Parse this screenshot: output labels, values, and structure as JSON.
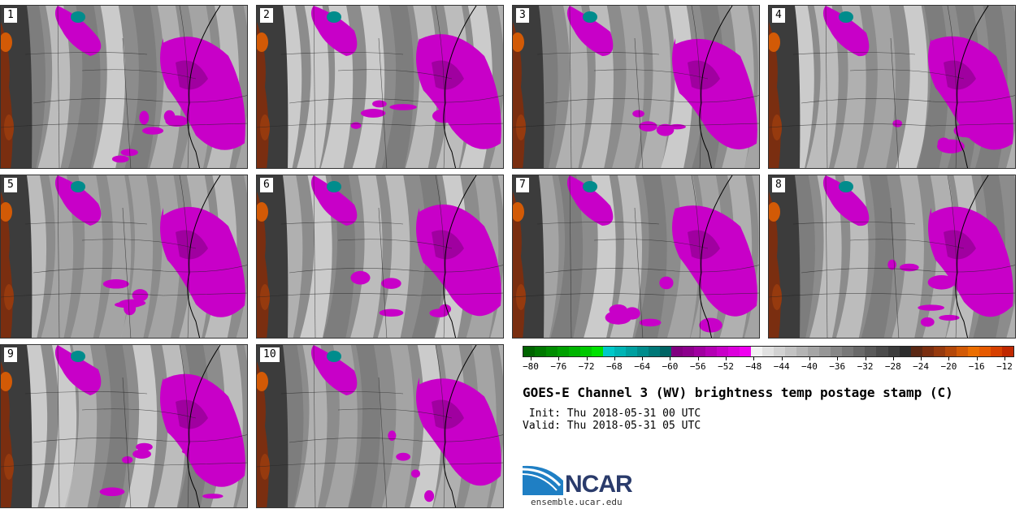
{
  "panels": [
    {
      "label": "1"
    },
    {
      "label": "2"
    },
    {
      "label": "3"
    },
    {
      "label": "4"
    },
    {
      "label": "5"
    },
    {
      "label": "6"
    },
    {
      "label": "7"
    },
    {
      "label": "8"
    },
    {
      "label": "9"
    },
    {
      "label": "10"
    }
  ],
  "colorbar": {
    "colors": [
      "#006400",
      "#007800",
      "#008c00",
      "#00a000",
      "#00b400",
      "#00c800",
      "#00e100",
      "#00c8c8",
      "#00b4b4",
      "#00a0a0",
      "#008c8c",
      "#007878",
      "#006464",
      "#800080",
      "#8c008c",
      "#a000a0",
      "#b400b4",
      "#c800c8",
      "#dc00dc",
      "#f000f0",
      "#f2f2f2",
      "#e1e1e1",
      "#d2d2d2",
      "#c3c3c3",
      "#b4b4b4",
      "#a5a5a5",
      "#969696",
      "#878787",
      "#787878",
      "#696969",
      "#5a5a5a",
      "#4b4b4b",
      "#3c3c3c",
      "#2d2d2d",
      "#5a2814",
      "#7a2e10",
      "#963a0e",
      "#b4480a",
      "#d25a06",
      "#eb6e00",
      "#e65a00",
      "#d64000",
      "#c02800"
    ],
    "tick_labels": [
      "−80",
      "−76",
      "−72",
      "−68",
      "−64",
      "−60",
      "−56",
      "−52",
      "−48",
      "−44",
      "−40",
      "−36",
      "−32",
      "−28",
      "−24",
      "−20",
      "−16",
      "−12"
    ],
    "min": -80,
    "max": -10
  },
  "title": "GOES-E Channel 3 (WV) brightness temp postage stamp (C)",
  "init_text": " Init: Thu 2018-05-31 00 UTC",
  "valid_text": "Valid: Thu 2018-05-31 05 UTC",
  "logo_text": "NCAR",
  "site_text": "ensemble.ucar.edu"
}
